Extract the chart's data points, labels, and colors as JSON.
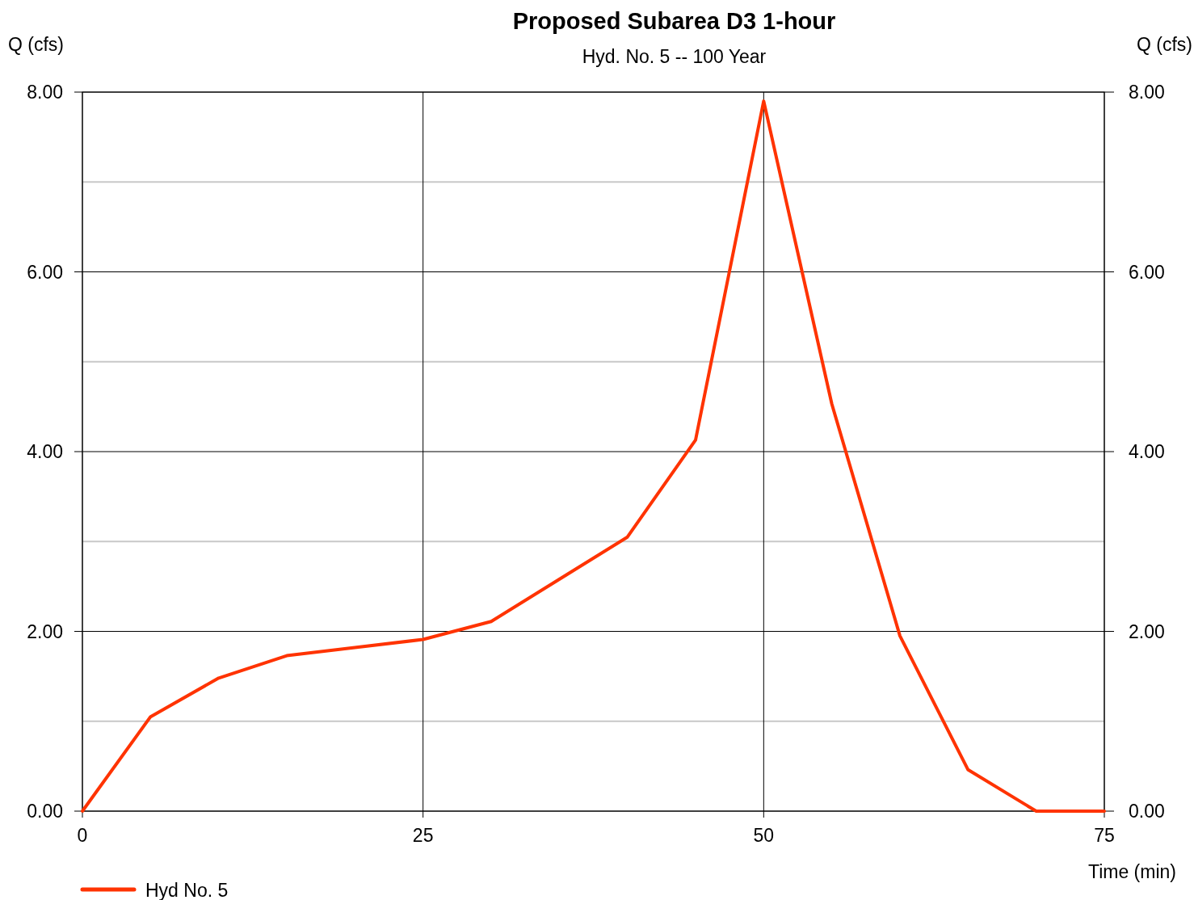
{
  "chart_data": {
    "type": "line",
    "title": "Proposed Subarea D3 1-hour",
    "subtitle": "Hyd. No. 5 -- 100 Year",
    "xlabel": "Time (min)",
    "ylabel": "Q (cfs)",
    "y2label": "Q (cfs)",
    "x": [
      0,
      5,
      10,
      15,
      20,
      25,
      30,
      35,
      40,
      45,
      50,
      55,
      60,
      65,
      70,
      75
    ],
    "series": [
      {
        "name": "Hyd No. 5",
        "color": "#ff3300",
        "values": [
          0,
          1.05,
          1.48,
          1.73,
          1.82,
          1.91,
          2.11,
          2.58,
          3.05,
          4.13,
          7.9,
          4.53,
          1.95,
          0.46,
          0,
          0
        ]
      }
    ],
    "xlim": [
      0,
      75
    ],
    "xticks": [
      0,
      25,
      50,
      75
    ],
    "ylim": [
      0,
      8
    ],
    "yticks": [
      {
        "value": 0,
        "label": "0.00"
      },
      {
        "value": 1,
        "label": null
      },
      {
        "value": 2,
        "label": "2.00"
      },
      {
        "value": 3,
        "label": null
      },
      {
        "value": 4,
        "label": "4.00"
      },
      {
        "value": 5,
        "label": null
      },
      {
        "value": 6,
        "label": "6.00"
      },
      {
        "value": 7,
        "label": null
      },
      {
        "value": 8,
        "label": "8.00"
      }
    ],
    "y2lim": [
      0,
      8
    ],
    "y2ticks": [
      {
        "value": 0,
        "label": "0.00"
      },
      {
        "value": 2,
        "label": "2.00"
      },
      {
        "value": 4,
        "label": "4.00"
      },
      {
        "value": 6,
        "label": "6.00"
      },
      {
        "value": 8,
        "label": "8.00"
      }
    ],
    "grid": true,
    "legend": "bottom left",
    "marker": "none",
    "line_style": "solid"
  }
}
